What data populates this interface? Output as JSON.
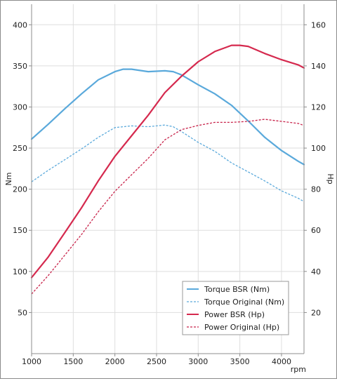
{
  "chart_data": {
    "type": "line",
    "title": "",
    "xlabel": "rpm",
    "ylabel_left": "Nm",
    "ylabel_right": "Hp",
    "xlim": [
      1000,
      4270
    ],
    "ylim_left": [
      0,
      425
    ],
    "ylim_right": [
      0,
      170
    ],
    "xticks": [
      "1000",
      "1500",
      "2000",
      "2500",
      "3000",
      "3500",
      "4000"
    ],
    "yticks_left": [
      "50",
      "100",
      "150",
      "200",
      "250",
      "300",
      "350",
      "400"
    ],
    "yticks_right": [
      "20",
      "40",
      "60",
      "80",
      "100",
      "120",
      "140",
      "160"
    ],
    "grid": true,
    "legend_position": "bottom-right",
    "series": [
      {
        "name": "Torque BSR (Nm)",
        "axis": "left",
        "color": "#5aa9db",
        "dash": "solid",
        "x": [
          1000,
          1200,
          1400,
          1600,
          1800,
          2000,
          2100,
          2200,
          2400,
          2600,
          2700,
          2800,
          3000,
          3200,
          3400,
          3600,
          3800,
          4000,
          4200,
          4270
        ],
        "y": [
          261,
          279,
          298,
          316,
          333,
          343,
          346,
          346,
          343,
          344,
          343,
          339,
          327,
          316,
          302,
          283,
          263,
          247,
          234,
          230
        ]
      },
      {
        "name": "Torque Original (Nm)",
        "axis": "left",
        "color": "#5aa9db",
        "dash": "dashed",
        "x": [
          1000,
          1200,
          1400,
          1600,
          1800,
          2000,
          2200,
          2400,
          2600,
          2700,
          2800,
          3000,
          3200,
          3400,
          3600,
          3800,
          4000,
          4200,
          4270
        ],
        "y": [
          209,
          223,
          236,
          249,
          263,
          275,
          277,
          276,
          278,
          276,
          270,
          257,
          246,
          232,
          221,
          210,
          198,
          189,
          185
        ]
      },
      {
        "name": "Power BSR (Hp)",
        "axis": "right",
        "color": "#d5294e",
        "dash": "solid",
        "x": [
          1000,
          1200,
          1400,
          1600,
          1800,
          2000,
          2200,
          2400,
          2600,
          2800,
          3000,
          3200,
          3400,
          3500,
          3600,
          3800,
          4000,
          4200,
          4270
        ],
        "y": [
          37,
          47,
          59,
          71,
          84,
          96,
          106,
          116,
          127,
          135,
          142,
          147,
          150,
          150,
          149.5,
          146,
          143,
          140.5,
          139
        ]
      },
      {
        "name": "Power Original (Hp)",
        "axis": "right",
        "color": "#c8234a",
        "dash": "dashed",
        "x": [
          1000,
          1200,
          1400,
          1600,
          1800,
          2000,
          2200,
          2400,
          2600,
          2800,
          3000,
          3200,
          3400,
          3600,
          3800,
          4000,
          4200,
          4270
        ],
        "y": [
          29,
          38,
          48,
          58,
          69,
          79,
          87,
          95,
          104,
          109,
          111,
          112.5,
          112.5,
          113,
          114,
          113,
          112,
          111
        ]
      }
    ]
  }
}
